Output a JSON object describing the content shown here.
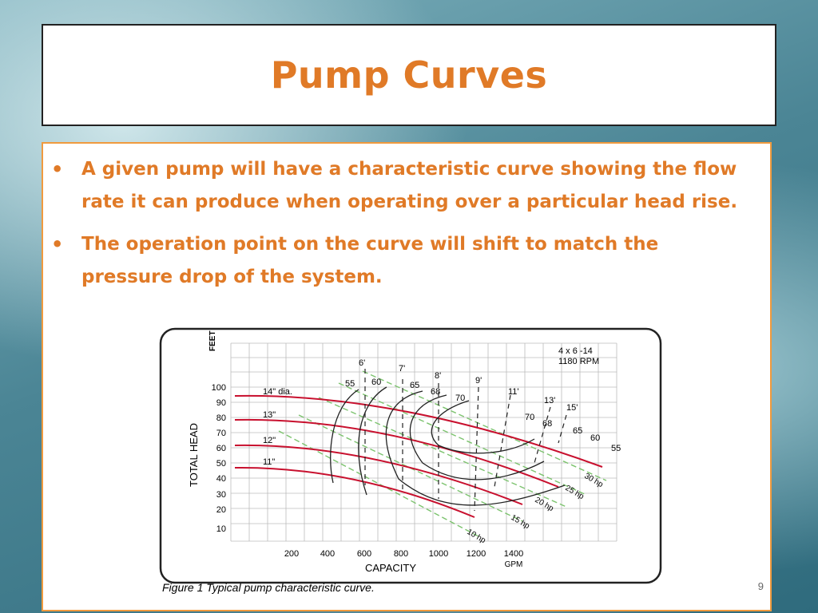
{
  "slide": {
    "title": "Pump Curves",
    "bullets": [
      "A given pump will have a characteristic curve showing the flow rate it can produce when operating over a particular head rise.",
      "The operation point on the curve will shift to match the pressure drop of the system."
    ],
    "page_number": "9"
  },
  "figure": {
    "caption": "Figure 1 Typical pump characteristic curve.",
    "model": "4 x 6 -14",
    "speed": "1180 RPM",
    "y_unit": "FEET",
    "y_label": "TOTAL HEAD",
    "x_label": "CAPACITY",
    "x_unit": "GPM",
    "x_ticks": [
      "200",
      "400",
      "600",
      "800",
      "1000",
      "1200",
      "1400"
    ],
    "y_ticks": [
      "100",
      "90",
      "80",
      "70",
      "60",
      "50",
      "40",
      "30",
      "20",
      "10"
    ],
    "impeller_labels": [
      "14\" dia.",
      "13\"",
      "12\"",
      "11\""
    ],
    "npsh_labels": [
      "6'",
      "7'",
      "8'",
      "9'",
      "11'",
      "13'",
      "15'"
    ],
    "efficiency_labels_left": [
      "55",
      "60",
      "65",
      "68",
      "70"
    ],
    "efficiency_labels_right": [
      "70",
      "68",
      "65",
      "60",
      "55"
    ],
    "hp_labels": [
      "10 hp",
      "15 hp",
      "20 hp",
      "25 hp",
      "30 hp"
    ],
    "colors": {
      "title": "#e07a27",
      "bullet_text": "#e07a27",
      "content_border": "#f09a3e",
      "head_curve": "#c8102e",
      "hp_line": "#7cc36e",
      "efficiency_curve": "#222222"
    }
  }
}
